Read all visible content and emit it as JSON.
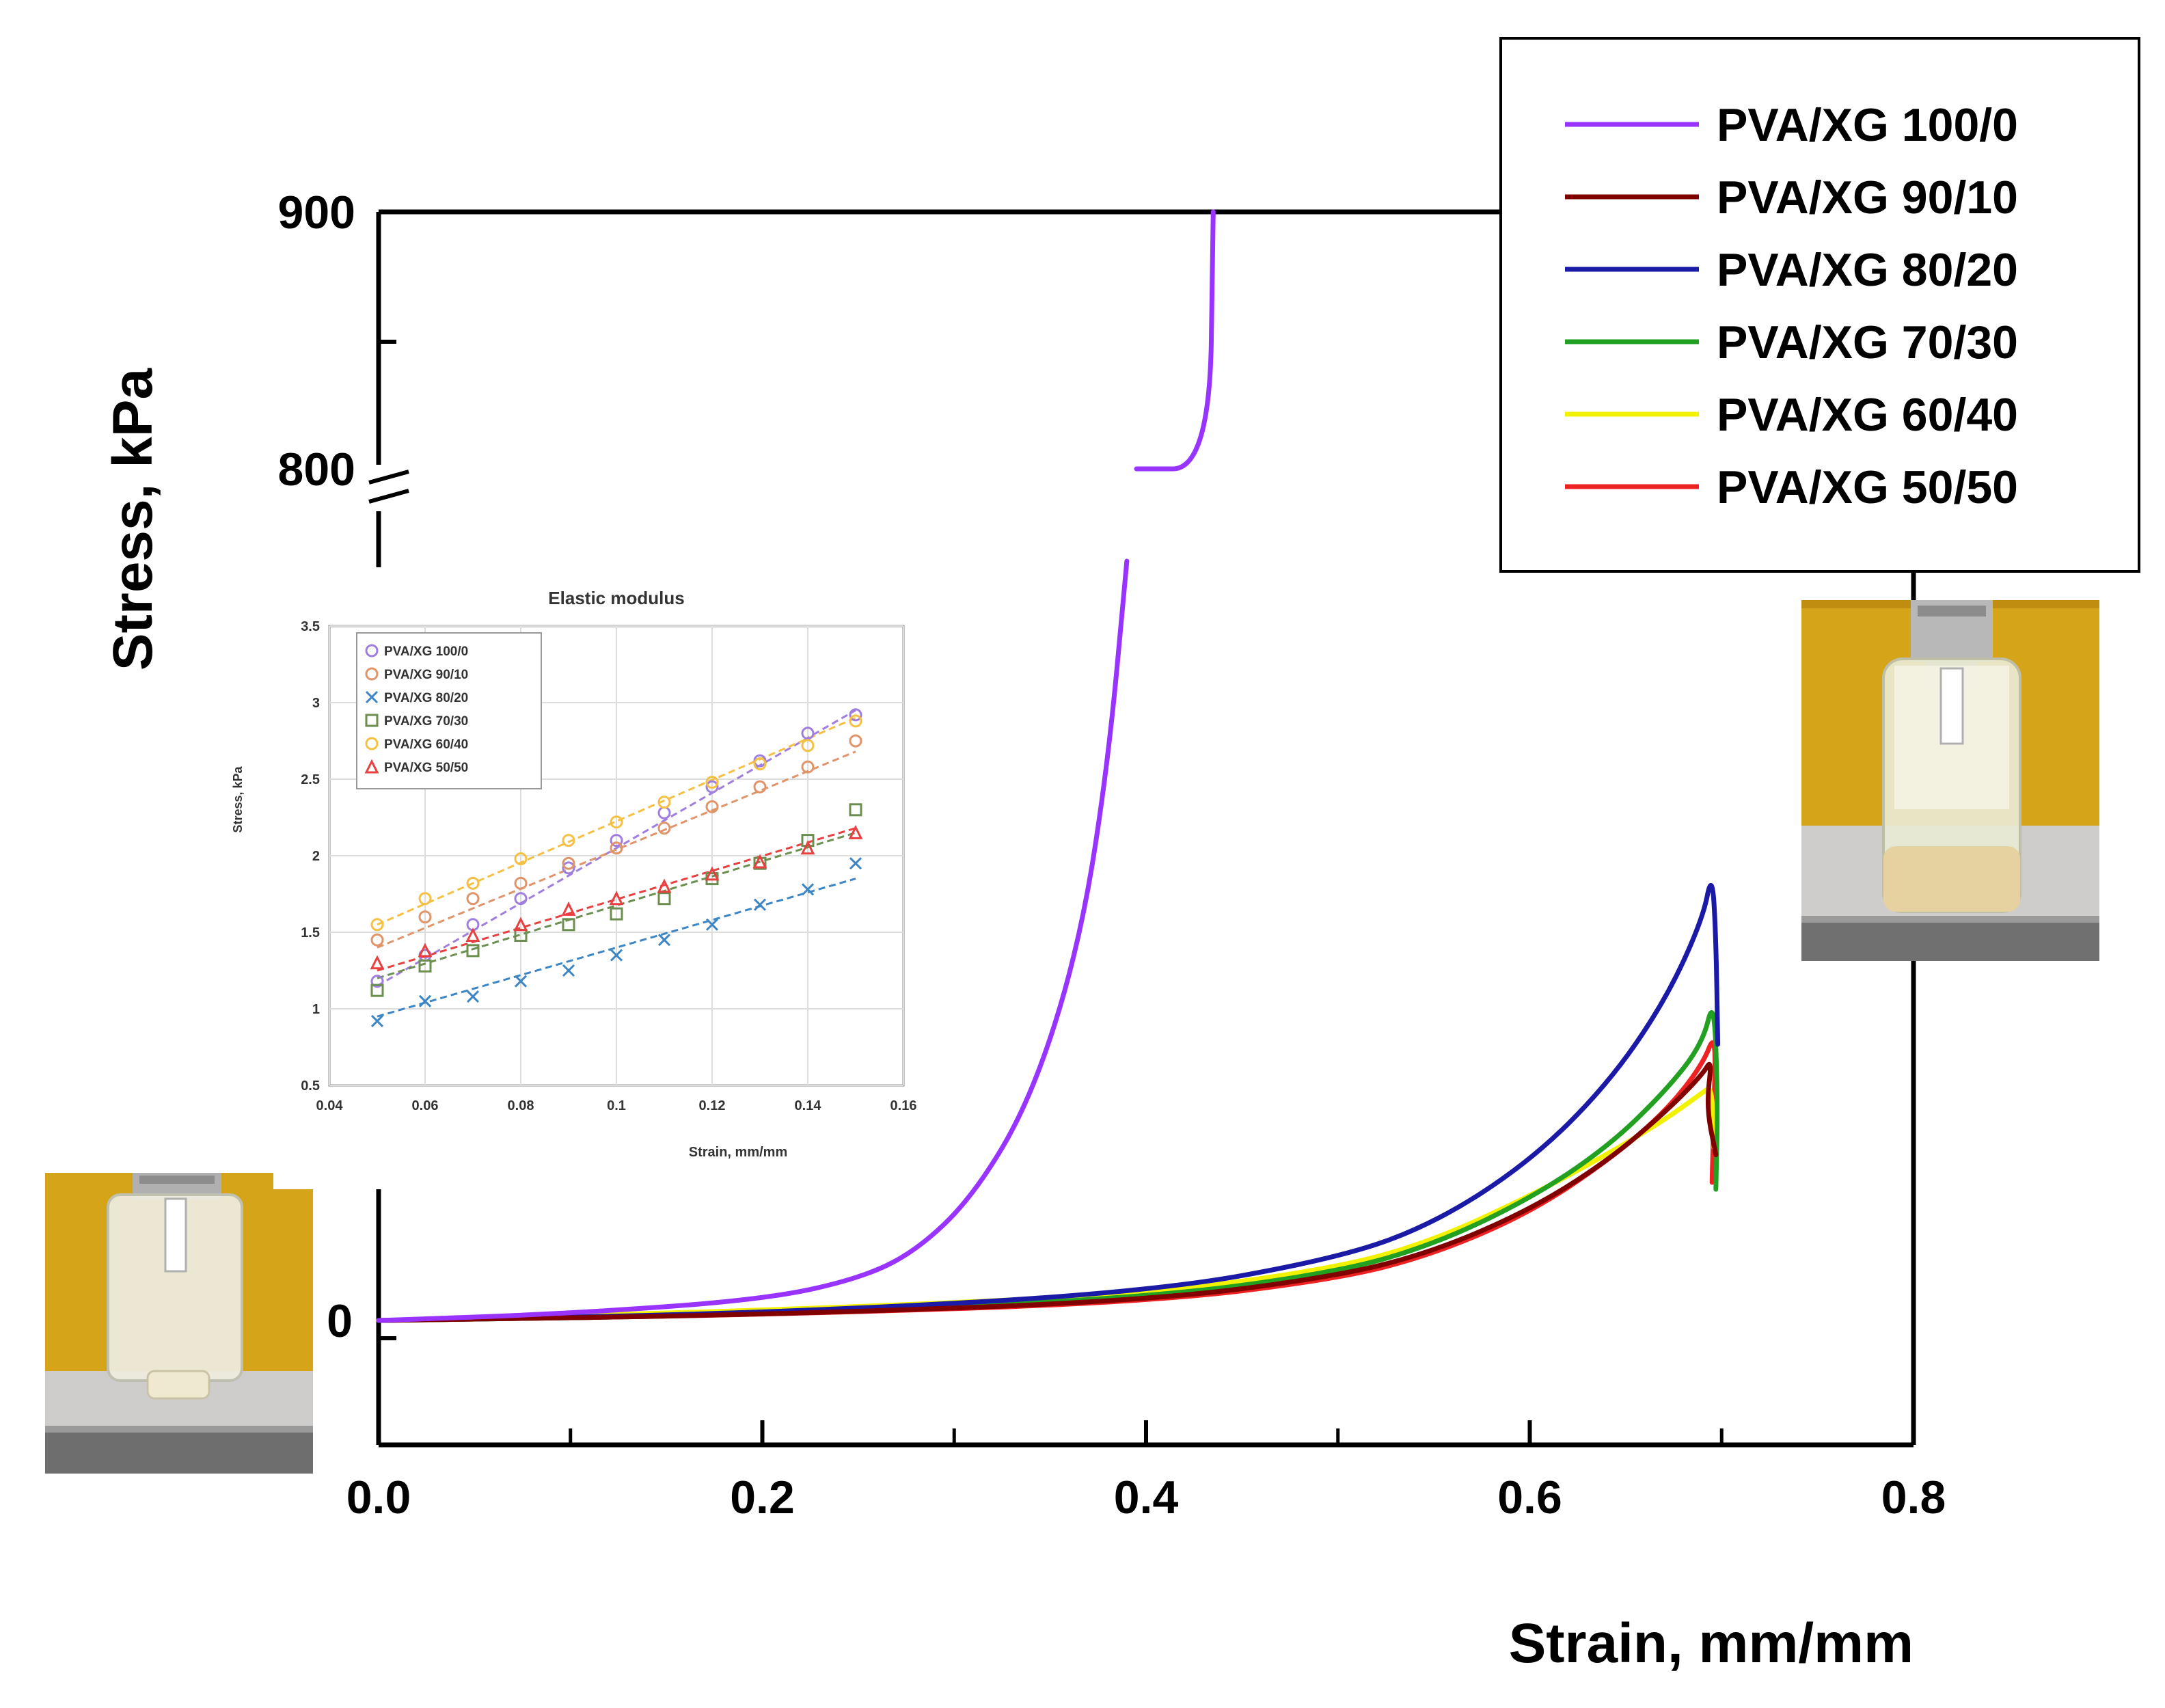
{
  "chart_data": [
    {
      "type": "line",
      "title": "",
      "xlabel": "Strain, mm/mm",
      "ylabel": "Stress, kPa",
      "xlim": [
        0.0,
        0.8
      ],
      "x_ticks": [
        "0.0",
        "0.2",
        "0.4",
        "0.6",
        "0.8"
      ],
      "y_ticks": [
        "0",
        "800",
        "900"
      ],
      "y_axis_break": true,
      "legend_position": "top-right",
      "series": [
        {
          "name": "PVA/XG 100/0",
          "color": "#9933ff",
          "x": [
            0.0,
            0.1,
            0.2,
            0.25,
            0.28,
            0.31,
            0.34,
            0.365,
            0.38,
            0.39,
            0.395,
            0.433,
            0.435
          ],
          "y": [
            0.0,
            0.5,
            1.5,
            3.0,
            5.0,
            9.0,
            16.0,
            27.0,
            40.0,
            55.0,
            800,
            800,
            900
          ]
        },
        {
          "name": "PVA/XG 90/10",
          "color": "#800000",
          "x": [
            0.0,
            0.2,
            0.4,
            0.5,
            0.55,
            0.6,
            0.64,
            0.67,
            0.69,
            0.695,
            0.692,
            0.697
          ],
          "y": [
            0.0,
            0.4,
            1.4,
            3.2,
            5.0,
            8.0,
            11.5,
            15.0,
            17.8,
            19.0,
            15.5,
            12.0
          ]
        },
        {
          "name": "PVA/XG 80/20",
          "color": "#1a1aa6",
          "x": [
            0.0,
            0.2,
            0.4,
            0.5,
            0.55,
            0.6,
            0.64,
            0.67,
            0.69,
            0.695,
            0.697,
            0.698
          ],
          "y": [
            0.0,
            0.5,
            2.0,
            4.5,
            7.0,
            11.5,
            17.0,
            23.0,
            29.0,
            32.5,
            28.0,
            20.0
          ]
        },
        {
          "name": "PVA/XG 70/30",
          "color": "#22a022",
          "x": [
            0.0,
            0.2,
            0.4,
            0.5,
            0.55,
            0.6,
            0.64,
            0.67,
            0.69,
            0.696,
            0.698,
            0.697
          ],
          "y": [
            0.0,
            0.4,
            1.6,
            3.5,
            5.5,
            8.8,
            12.5,
            16.5,
            20.0,
            23.5,
            16.0,
            9.5
          ]
        },
        {
          "name": "PVA/XG 60/40",
          "color": "#f2f200",
          "x": [
            0.0,
            0.2,
            0.4,
            0.5,
            0.55,
            0.6,
            0.64,
            0.67,
            0.69,
            0.695,
            0.696
          ],
          "y": [
            0.0,
            0.7,
            1.9,
            3.8,
            5.8,
            9.0,
            12.0,
            14.5,
            16.5,
            17.0,
            12.5
          ]
        },
        {
          "name": "PVA/XG 50/50",
          "color": "#ee2222",
          "x": [
            0.0,
            0.2,
            0.4,
            0.5,
            0.55,
            0.6,
            0.64,
            0.67,
            0.69,
            0.697,
            0.696,
            0.695
          ],
          "y": [
            0.0,
            0.4,
            1.3,
            3.0,
            4.8,
            7.8,
            11.5,
            15.0,
            18.5,
            21.0,
            15.0,
            10.0
          ]
        }
      ]
    },
    {
      "type": "scatter",
      "title": "Elastic modulus",
      "xlabel": "Strain, mm/mm",
      "ylabel": "Stress, kPa",
      "xlim": [
        0.04,
        0.16
      ],
      "ylim": [
        0.5,
        3.5
      ],
      "x_ticks": [
        "0.04",
        "0.06",
        "0.08",
        "0.1",
        "0.12",
        "0.14",
        "0.16"
      ],
      "y_ticks": [
        "0.5",
        "1",
        "1.5",
        "2",
        "2.5",
        "3",
        "3.5"
      ],
      "grid": true,
      "legend_position": "top-left",
      "trendlines": "dashed",
      "series": [
        {
          "name": "PVA/XG 100/0",
          "color": "#a07ee0",
          "marker": "circle",
          "x": [
            0.05,
            0.06,
            0.07,
            0.08,
            0.09,
            0.1,
            0.11,
            0.12,
            0.13,
            0.14,
            0.15
          ],
          "y": [
            1.18,
            1.35,
            1.55,
            1.72,
            1.92,
            2.1,
            2.28,
            2.45,
            2.62,
            2.8,
            2.92
          ],
          "fit": [
            [
              0.05,
              1.15
            ],
            [
              0.15,
              2.95
            ]
          ]
        },
        {
          "name": "PVA/XG 90/10",
          "color": "#e0946a",
          "marker": "circle",
          "x": [
            0.05,
            0.06,
            0.07,
            0.08,
            0.09,
            0.1,
            0.11,
            0.12,
            0.13,
            0.14,
            0.15
          ],
          "y": [
            1.45,
            1.6,
            1.72,
            1.82,
            1.95,
            2.05,
            2.18,
            2.32,
            2.45,
            2.58,
            2.75
          ],
          "fit": [
            [
              0.05,
              1.4
            ],
            [
              0.15,
              2.68
            ]
          ]
        },
        {
          "name": "PVA/XG 80/20",
          "color": "#3d86c6",
          "marker": "x",
          "x": [
            0.05,
            0.06,
            0.07,
            0.08,
            0.09,
            0.1,
            0.11,
            0.12,
            0.13,
            0.14,
            0.15
          ],
          "y": [
            0.92,
            1.05,
            1.08,
            1.18,
            1.25,
            1.35,
            1.45,
            1.55,
            1.68,
            1.78,
            1.95
          ],
          "fit": [
            [
              0.05,
              0.95
            ],
            [
              0.15,
              1.85
            ]
          ]
        },
        {
          "name": "PVA/XG 70/30",
          "color": "#6b8f4f",
          "marker": "square",
          "x": [
            0.05,
            0.06,
            0.07,
            0.08,
            0.09,
            0.1,
            0.11,
            0.12,
            0.13,
            0.14,
            0.15
          ],
          "y": [
            1.12,
            1.28,
            1.38,
            1.48,
            1.55,
            1.62,
            1.72,
            1.85,
            1.95,
            2.1,
            2.3
          ],
          "fit": [
            [
              0.05,
              1.2
            ],
            [
              0.15,
              2.15
            ]
          ]
        },
        {
          "name": "PVA/XG 60/40",
          "color": "#f5c044",
          "marker": "circle",
          "x": [
            0.05,
            0.06,
            0.07,
            0.08,
            0.09,
            0.1,
            0.11,
            0.12,
            0.13,
            0.14,
            0.15
          ],
          "y": [
            1.55,
            1.72,
            1.82,
            1.98,
            2.1,
            2.22,
            2.35,
            2.48,
            2.6,
            2.72,
            2.88
          ],
          "fit": [
            [
              0.05,
              1.55
            ],
            [
              0.15,
              2.9
            ]
          ]
        },
        {
          "name": "PVA/XG 50/50",
          "color": "#e84040",
          "marker": "triangle",
          "x": [
            0.05,
            0.06,
            0.07,
            0.08,
            0.09,
            0.1,
            0.11,
            0.12,
            0.13,
            0.14,
            0.15
          ],
          "y": [
            1.3,
            1.38,
            1.48,
            1.55,
            1.65,
            1.72,
            1.8,
            1.88,
            1.96,
            2.05,
            2.15
          ],
          "fit": [
            [
              0.05,
              1.25
            ],
            [
              0.15,
              2.18
            ]
          ]
        }
      ]
    }
  ],
  "photos": {
    "left": "compression-test-photo-initial",
    "right": "compression-test-photo-compressed"
  }
}
